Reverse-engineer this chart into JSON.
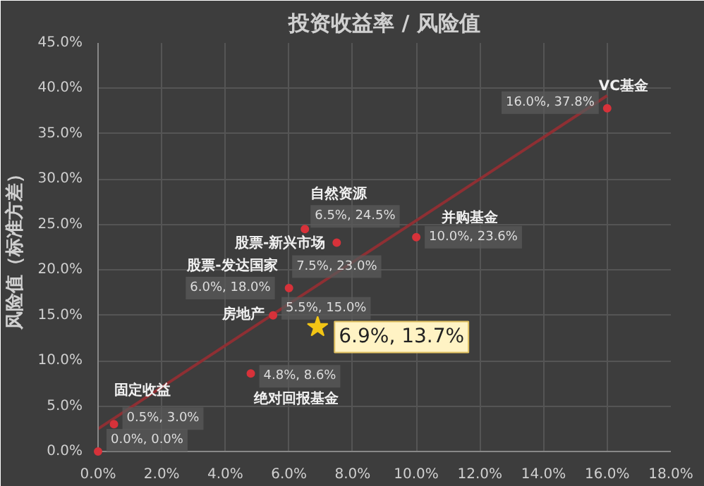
{
  "chart_data": {
    "type": "scatter",
    "title": "投资收益率 / 风险值",
    "ylabel": "风险值（标准方差）",
    "xlim": [
      0,
      18
    ],
    "ylim": [
      0,
      45
    ],
    "xticks": [
      {
        "value": 0,
        "label": "0.0%"
      },
      {
        "value": 2,
        "label": "2.0%"
      },
      {
        "value": 4,
        "label": "4.0%"
      },
      {
        "value": 6,
        "label": "6.0%"
      },
      {
        "value": 8,
        "label": "8.0%"
      },
      {
        "value": 10,
        "label": "10.0%"
      },
      {
        "value": 12,
        "label": "12.0%"
      },
      {
        "value": 14,
        "label": "14.0%"
      },
      {
        "value": 16,
        "label": "16.0%"
      },
      {
        "value": 18,
        "label": "18.0%"
      }
    ],
    "yticks": [
      {
        "value": 0,
        "label": "0.0%"
      },
      {
        "value": 5,
        "label": "5.0%"
      },
      {
        "value": 10,
        "label": "10.0%"
      },
      {
        "value": 15,
        "label": "15.0%"
      },
      {
        "value": 20,
        "label": "20.0%"
      },
      {
        "value": 25,
        "label": "25.0%"
      },
      {
        "value": 30,
        "label": "30.0%"
      },
      {
        "value": 35,
        "label": "35.0%"
      },
      {
        "value": 40,
        "label": "40.0%"
      },
      {
        "value": 45,
        "label": "45.0%"
      }
    ],
    "grid": true,
    "series": [
      {
        "type": "line",
        "x": [
          0,
          16
        ],
        "values": [
          2.5,
          39.2
        ],
        "color": "#8e2f33"
      },
      {
        "type": "scatter",
        "marker": "circle",
        "color": "#d7323a",
        "x": [
          0,
          0.5,
          4.8,
          5.5,
          6.0,
          7.5,
          6.5,
          10.0,
          16.0
        ],
        "values": [
          0,
          3.0,
          8.6,
          15.0,
          18.0,
          23.0,
          24.5,
          23.6,
          37.8
        ],
        "value_labels": [
          "0.0%, 0.0%",
          "0.5%, 3.0%",
          "4.8%, 8.6%",
          "5.5%, 15.0%",
          "6.0%, 18.0%",
          "7.5%, 23.0%",
          "6.5%, 24.5%",
          "10.0%, 23.6%",
          "16.0%, 37.8%"
        ]
      },
      {
        "type": "scatter",
        "marker": "star",
        "color": "#f2c515",
        "x": [
          6.9
        ],
        "values": [
          13.7
        ],
        "value_labels": [
          "6.9%, 13.7%"
        ]
      }
    ],
    "annotations": [
      {
        "text": "固定收益",
        "x": 0.5,
        "y": 3.0
      },
      {
        "text": "绝对回报基金",
        "x": 4.8,
        "y": 8.6
      },
      {
        "text": "房地产",
        "x": 5.5,
        "y": 15.0
      },
      {
        "text": "股票-发达国家",
        "x": 6.0,
        "y": 18.0
      },
      {
        "text": "股票-新兴市场",
        "x": 7.5,
        "y": 23.0
      },
      {
        "text": "自然资源",
        "x": 6.5,
        "y": 24.5
      },
      {
        "text": "并购基金",
        "x": 10.0,
        "y": 23.6
      },
      {
        "text": "VC基金",
        "x": 16.0,
        "y": 37.8
      }
    ]
  }
}
